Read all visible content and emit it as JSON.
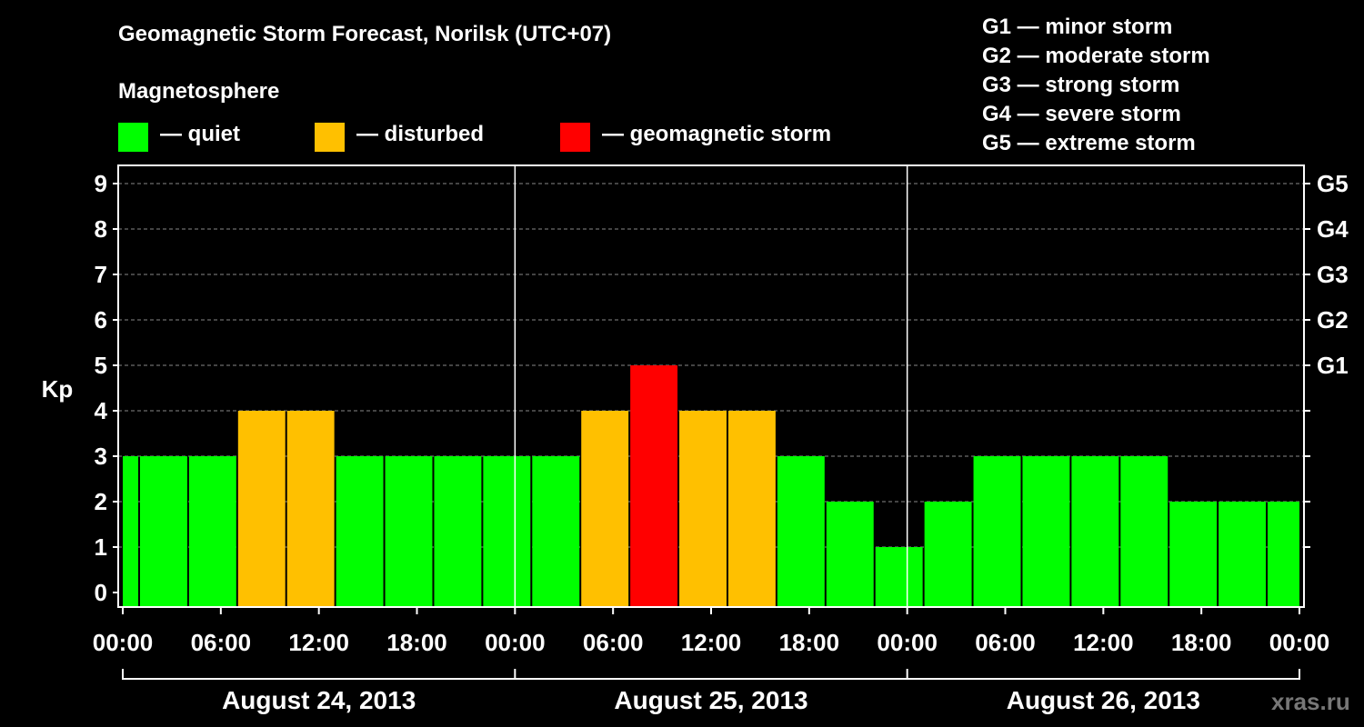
{
  "title": "Geomagnetic Storm Forecast, Norilsk (UTC+07)",
  "magnetosphere_heading": "Magnetosphere",
  "legend": [
    {
      "label": "— quiet",
      "color": "#00ff00"
    },
    {
      "label": "— disturbed",
      "color": "#ffc000"
    },
    {
      "label": "— geomagnetic storm",
      "color": "#ff0000"
    }
  ],
  "g_scale": [
    {
      "label": "G1 — minor storm"
    },
    {
      "label": "G2 — moderate storm"
    },
    {
      "label": "G3 — strong storm"
    },
    {
      "label": "G4 — severe storm"
    },
    {
      "label": "G5 — extreme storm"
    }
  ],
  "watermark": "xras.ru",
  "chart_data": {
    "type": "bar",
    "ylabel": "Kp",
    "ylim": [
      0,
      9
    ],
    "y_ticks": [
      "0",
      "1",
      "2",
      "3",
      "4",
      "5",
      "6",
      "7",
      "8",
      "9"
    ],
    "right_ticks": [
      {
        "kp": 5,
        "label": "G1"
      },
      {
        "kp": 6,
        "label": "G2"
      },
      {
        "kp": 7,
        "label": "G3"
      },
      {
        "kp": 8,
        "label": "G4"
      },
      {
        "kp": 9,
        "label": "G5"
      }
    ],
    "x_ticks": [
      "00:00",
      "06:00",
      "12:00",
      "18:00",
      "00:00",
      "06:00",
      "12:00",
      "18:00",
      "00:00",
      "06:00",
      "12:00",
      "18:00",
      "00:00"
    ],
    "x_tick_hours": [
      0,
      6,
      12,
      18,
      24,
      30,
      36,
      42,
      48,
      54,
      60,
      66,
      72
    ],
    "days": [
      "August 24, 2013",
      "August 25, 2013",
      "August 26, 2013"
    ],
    "grid": true,
    "colors": {
      "quiet": "#00ff00",
      "disturbed": "#ffc000",
      "storm": "#ff0000"
    },
    "bars": [
      {
        "start_hour": 0,
        "end_hour": 1,
        "kp": 3,
        "level": "quiet"
      },
      {
        "start_hour": 1,
        "end_hour": 4,
        "kp": 3,
        "level": "quiet"
      },
      {
        "start_hour": 4,
        "end_hour": 7,
        "kp": 3,
        "level": "quiet"
      },
      {
        "start_hour": 7,
        "end_hour": 10,
        "kp": 4,
        "level": "disturbed"
      },
      {
        "start_hour": 10,
        "end_hour": 13,
        "kp": 4,
        "level": "disturbed"
      },
      {
        "start_hour": 13,
        "end_hour": 16,
        "kp": 3,
        "level": "quiet"
      },
      {
        "start_hour": 16,
        "end_hour": 19,
        "kp": 3,
        "level": "quiet"
      },
      {
        "start_hour": 19,
        "end_hour": 22,
        "kp": 3,
        "level": "quiet"
      },
      {
        "start_hour": 22,
        "end_hour": 25,
        "kp": 3,
        "level": "quiet"
      },
      {
        "start_hour": 25,
        "end_hour": 28,
        "kp": 3,
        "level": "quiet"
      },
      {
        "start_hour": 28,
        "end_hour": 31,
        "kp": 4,
        "level": "disturbed"
      },
      {
        "start_hour": 31,
        "end_hour": 34,
        "kp": 5,
        "level": "storm"
      },
      {
        "start_hour": 34,
        "end_hour": 37,
        "kp": 4,
        "level": "disturbed"
      },
      {
        "start_hour": 37,
        "end_hour": 40,
        "kp": 4,
        "level": "disturbed"
      },
      {
        "start_hour": 40,
        "end_hour": 43,
        "kp": 3,
        "level": "quiet"
      },
      {
        "start_hour": 43,
        "end_hour": 46,
        "kp": 2,
        "level": "quiet"
      },
      {
        "start_hour": 46,
        "end_hour": 49,
        "kp": 1,
        "level": "quiet"
      },
      {
        "start_hour": 49,
        "end_hour": 52,
        "kp": 2,
        "level": "quiet"
      },
      {
        "start_hour": 52,
        "end_hour": 55,
        "kp": 3,
        "level": "quiet"
      },
      {
        "start_hour": 55,
        "end_hour": 58,
        "kp": 3,
        "level": "quiet"
      },
      {
        "start_hour": 58,
        "end_hour": 61,
        "kp": 3,
        "level": "quiet"
      },
      {
        "start_hour": 61,
        "end_hour": 64,
        "kp": 3,
        "level": "quiet"
      },
      {
        "start_hour": 64,
        "end_hour": 67,
        "kp": 2,
        "level": "quiet"
      },
      {
        "start_hour": 67,
        "end_hour": 70,
        "kp": 2,
        "level": "quiet"
      },
      {
        "start_hour": 70,
        "end_hour": 72,
        "kp": 2,
        "level": "quiet"
      }
    ]
  }
}
